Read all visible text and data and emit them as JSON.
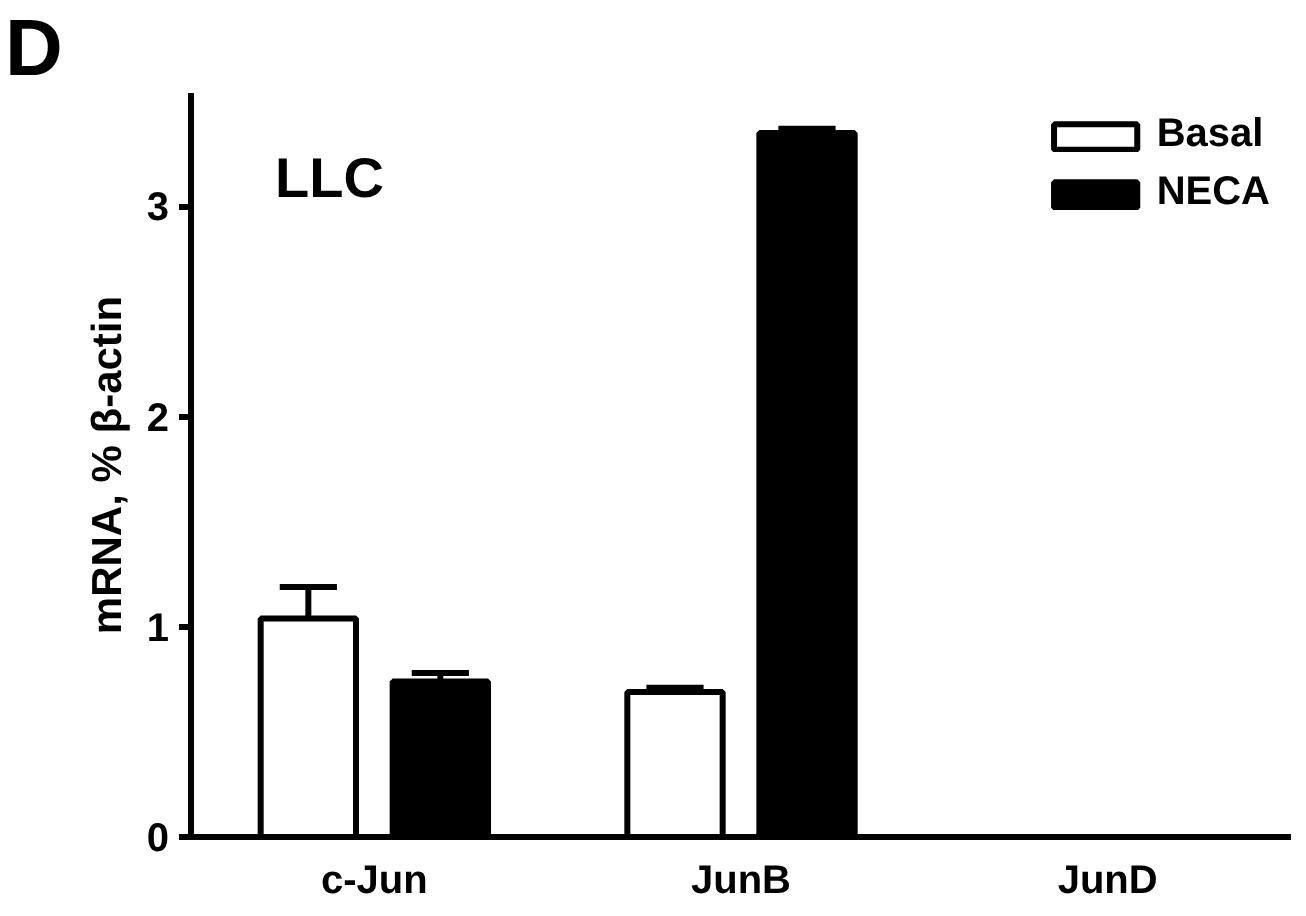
{
  "chart_data": {
    "type": "bar",
    "categories": [
      "c-Jun",
      "JunB",
      "JunD"
    ],
    "series": [
      {
        "name": "Basal",
        "color": "#ffffff",
        "values": [
          1.04,
          0.69,
          null
        ],
        "errors": [
          0.15,
          0.02,
          null
        ]
      },
      {
        "name": "NECA",
        "color": "#000000",
        "values": [
          0.74,
          3.35,
          null
        ],
        "errors": [
          0.04,
          0.02,
          null
        ]
      }
    ],
    "ylabel": "mRNA, % β-actin",
    "annotations": [
      "D",
      "LLC"
    ],
    "ylim": [
      0,
      3.54
    ],
    "yticks": [
      0,
      1,
      2,
      3
    ],
    "legend": "top right",
    "grid": false
  }
}
